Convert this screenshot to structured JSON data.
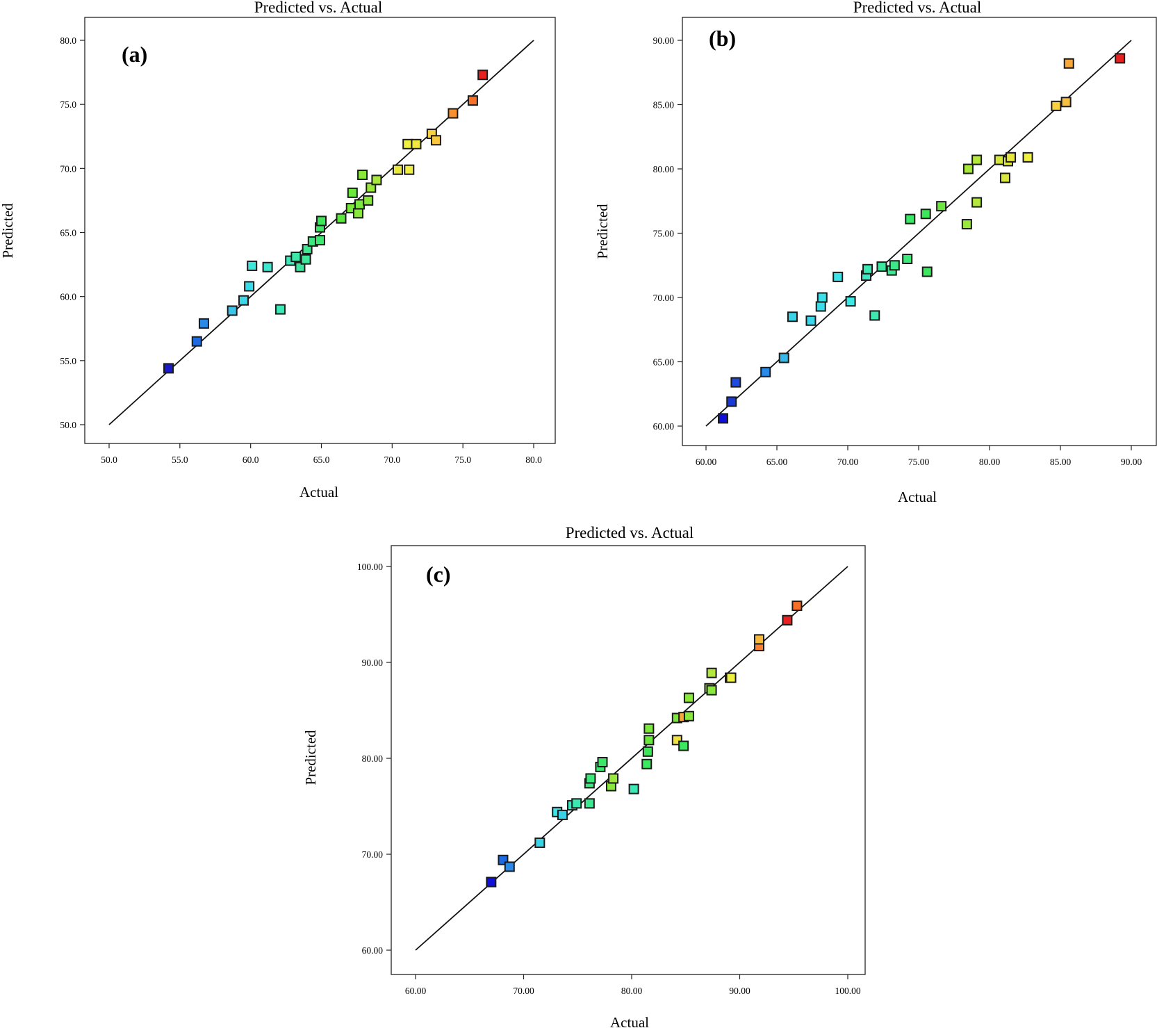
{
  "figure": {
    "description_label": "Predicted vs. Actual parity plots"
  },
  "chart_data": [
    {
      "type": "scatter",
      "panel": "(a)",
      "title": "Predicted vs. Actual",
      "xlabel": "Actual",
      "ylabel": "Predicted",
      "xlim": [
        50.0,
        80.0
      ],
      "ylim": [
        50.0,
        80.0
      ],
      "xticks": [
        "50.0",
        "55.0",
        "60.0",
        "65.0",
        "70.0",
        "75.0",
        "80.0"
      ],
      "yticks": [
        "50.0",
        "55.0",
        "60.0",
        "65.0",
        "70.0",
        "75.0",
        "80.0"
      ],
      "line": {
        "from": [
          50,
          50
        ],
        "to": [
          80,
          80
        ]
      },
      "points": [
        {
          "x": 54.2,
          "y": 54.4,
          "color": "#1a1ac8"
        },
        {
          "x": 56.2,
          "y": 56.5,
          "color": "#1e6ae0"
        },
        {
          "x": 56.7,
          "y": 57.9,
          "color": "#2a8ae8"
        },
        {
          "x": 58.7,
          "y": 58.9,
          "color": "#3cc4e8"
        },
        {
          "x": 59.5,
          "y": 59.7,
          "color": "#3ad8e8"
        },
        {
          "x": 59.9,
          "y": 60.8,
          "color": "#36dce8"
        },
        {
          "x": 60.1,
          "y": 62.4,
          "color": "#3ce8dc"
        },
        {
          "x": 61.2,
          "y": 62.3,
          "color": "#3ce8d0"
        },
        {
          "x": 62.1,
          "y": 59.0,
          "color": "#3ce8b8"
        },
        {
          "x": 62.8,
          "y": 62.8,
          "color": "#3ce8b8"
        },
        {
          "x": 63.2,
          "y": 63.1,
          "color": "#3ce8a8"
        },
        {
          "x": 63.5,
          "y": 62.3,
          "color": "#3ce8a0"
        },
        {
          "x": 63.9,
          "y": 62.9,
          "color": "#3ce89a"
        },
        {
          "x": 64.0,
          "y": 63.7,
          "color": "#3ce890"
        },
        {
          "x": 64.4,
          "y": 64.3,
          "color": "#3ce880"
        },
        {
          "x": 64.9,
          "y": 64.4,
          "color": "#3ce870"
        },
        {
          "x": 64.9,
          "y": 65.4,
          "color": "#3ce864"
        },
        {
          "x": 65.0,
          "y": 65.9,
          "color": "#3ce858"
        },
        {
          "x": 66.4,
          "y": 66.1,
          "color": "#5ae83c"
        },
        {
          "x": 67.1,
          "y": 66.9,
          "color": "#7ae83c"
        },
        {
          "x": 67.2,
          "y": 68.1,
          "color": "#6ae83c"
        },
        {
          "x": 67.6,
          "y": 66.5,
          "color": "#8ae83c"
        },
        {
          "x": 67.7,
          "y": 67.2,
          "color": "#7ae83c"
        },
        {
          "x": 67.9,
          "y": 69.5,
          "color": "#8ae83c"
        },
        {
          "x": 68.3,
          "y": 67.5,
          "color": "#8ae83c"
        },
        {
          "x": 68.5,
          "y": 68.5,
          "color": "#9ae83c"
        },
        {
          "x": 68.9,
          "y": 69.1,
          "color": "#a8e83c"
        },
        {
          "x": 70.4,
          "y": 69.9,
          "color": "#e8e83c"
        },
        {
          "x": 71.1,
          "y": 71.9,
          "color": "#f0f040"
        },
        {
          "x": 71.2,
          "y": 69.9,
          "color": "#f0f040"
        },
        {
          "x": 71.7,
          "y": 71.9,
          "color": "#f0e840"
        },
        {
          "x": 72.8,
          "y": 72.7,
          "color": "#f8d040"
        },
        {
          "x": 73.1,
          "y": 72.2,
          "color": "#f8c840"
        },
        {
          "x": 74.3,
          "y": 74.3,
          "color": "#f89030"
        },
        {
          "x": 75.7,
          "y": 75.3,
          "color": "#f87028"
        },
        {
          "x": 76.4,
          "y": 77.3,
          "color": "#e82020"
        }
      ]
    },
    {
      "type": "scatter",
      "panel": "(b)",
      "title": "Predicted vs. Actual",
      "xlabel": "Actual",
      "ylabel": "Predicted",
      "xlim": [
        60.0,
        90.0
      ],
      "ylim": [
        60.0,
        90.0
      ],
      "xticks": [
        "60.00",
        "65.00",
        "70.00",
        "75.00",
        "80.00",
        "85.00",
        "90.00"
      ],
      "yticks": [
        "60.00",
        "65.00",
        "70.00",
        "75.00",
        "80.00",
        "85.00",
        "90.00"
      ],
      "line": {
        "from": [
          60,
          60
        ],
        "to": [
          90,
          90
        ]
      },
      "points": [
        {
          "x": 61.2,
          "y": 60.6,
          "color": "#1010d8"
        },
        {
          "x": 61.8,
          "y": 61.9,
          "color": "#1a3ad8"
        },
        {
          "x": 62.1,
          "y": 63.4,
          "color": "#1e4ae0"
        },
        {
          "x": 64.2,
          "y": 64.2,
          "color": "#2a8ae8"
        },
        {
          "x": 65.5,
          "y": 65.3,
          "color": "#36b8e8"
        },
        {
          "x": 66.1,
          "y": 68.5,
          "color": "#3ad4e8"
        },
        {
          "x": 67.4,
          "y": 68.2,
          "color": "#3ad8e8"
        },
        {
          "x": 68.1,
          "y": 69.3,
          "color": "#3cdce8"
        },
        {
          "x": 68.2,
          "y": 70.0,
          "color": "#3ce0e8"
        },
        {
          "x": 69.3,
          "y": 71.6,
          "color": "#3ce4e8"
        },
        {
          "x": 70.2,
          "y": 69.7,
          "color": "#3ce8e4"
        },
        {
          "x": 71.3,
          "y": 71.7,
          "color": "#3ce8c8"
        },
        {
          "x": 71.4,
          "y": 72.2,
          "color": "#3ce8b4"
        },
        {
          "x": 71.9,
          "y": 68.6,
          "color": "#3ce8b0"
        },
        {
          "x": 72.4,
          "y": 72.4,
          "color": "#3ce8a0"
        },
        {
          "x": 73.1,
          "y": 72.1,
          "color": "#3ce890"
        },
        {
          "x": 73.3,
          "y": 72.5,
          "color": "#3ce888"
        },
        {
          "x": 74.2,
          "y": 73.0,
          "color": "#3ce878"
        },
        {
          "x": 74.4,
          "y": 76.1,
          "color": "#3ce868"
        },
        {
          "x": 75.5,
          "y": 76.5,
          "color": "#3ce858"
        },
        {
          "x": 75.6,
          "y": 72.0,
          "color": "#3ce860"
        },
        {
          "x": 76.6,
          "y": 77.1,
          "color": "#6ae83c"
        },
        {
          "x": 78.4,
          "y": 75.7,
          "color": "#9ae83c"
        },
        {
          "x": 78.5,
          "y": 80.0,
          "color": "#a8e83c"
        },
        {
          "x": 79.1,
          "y": 77.4,
          "color": "#b4e83c"
        },
        {
          "x": 79.1,
          "y": 80.7,
          "color": "#b4e83c"
        },
        {
          "x": 80.7,
          "y": 80.7,
          "color": "#d4e83c"
        },
        {
          "x": 81.1,
          "y": 79.3,
          "color": "#d8e83c"
        },
        {
          "x": 81.3,
          "y": 80.6,
          "color": "#e0e83c"
        },
        {
          "x": 81.5,
          "y": 80.9,
          "color": "#e8e83c"
        },
        {
          "x": 82.7,
          "y": 80.9,
          "color": "#f0f040"
        },
        {
          "x": 84.7,
          "y": 84.9,
          "color": "#f8d040"
        },
        {
          "x": 85.4,
          "y": 85.2,
          "color": "#f8c040"
        },
        {
          "x": 85.6,
          "y": 88.2,
          "color": "#f8a838"
        },
        {
          "x": 89.2,
          "y": 88.6,
          "color": "#e82020"
        }
      ]
    },
    {
      "type": "scatter",
      "panel": "(c)",
      "title": "Predicted vs. Actual",
      "xlabel": "Actual",
      "ylabel": "Predicted",
      "xlim": [
        60.0,
        100.0
      ],
      "ylim": [
        60.0,
        100.0
      ],
      "xticks": [
        "60.00",
        "70.00",
        "80.00",
        "90.00",
        "100.00"
      ],
      "yticks": [
        "60.00",
        "70.00",
        "80.00",
        "90.00",
        "100.00"
      ],
      "line": {
        "from": [
          60,
          60
        ],
        "to": [
          100,
          100
        ]
      },
      "points": [
        {
          "x": 67.0,
          "y": 67.1,
          "color": "#1010d8"
        },
        {
          "x": 68.1,
          "y": 69.4,
          "color": "#1e6ae0"
        },
        {
          "x": 68.7,
          "y": 68.7,
          "color": "#2a8ae8"
        },
        {
          "x": 71.5,
          "y": 71.2,
          "color": "#3ad4e8"
        },
        {
          "x": 73.1,
          "y": 74.4,
          "color": "#3ce4e8"
        },
        {
          "x": 73.6,
          "y": 74.1,
          "color": "#3ad0e8"
        },
        {
          "x": 74.5,
          "y": 75.1,
          "color": "#3ce8c0"
        },
        {
          "x": 74.9,
          "y": 75.3,
          "color": "#3ce8b0"
        },
        {
          "x": 76.1,
          "y": 75.3,
          "color": "#3ce890"
        },
        {
          "x": 76.1,
          "y": 77.4,
          "color": "#3ce880"
        },
        {
          "x": 76.2,
          "y": 77.9,
          "color": "#3ce878"
        },
        {
          "x": 77.1,
          "y": 79.1,
          "color": "#3ce870"
        },
        {
          "x": 77.3,
          "y": 79.6,
          "color": "#3ce868"
        },
        {
          "x": 78.1,
          "y": 77.1,
          "color": "#8ae83c"
        },
        {
          "x": 78.3,
          "y": 77.9,
          "color": "#9ae83c"
        },
        {
          "x": 80.2,
          "y": 76.8,
          "color": "#3ce8b8"
        },
        {
          "x": 81.4,
          "y": 79.4,
          "color": "#3ce860"
        },
        {
          "x": 81.5,
          "y": 80.7,
          "color": "#3ce858"
        },
        {
          "x": 81.6,
          "y": 81.9,
          "color": "#6ae83c"
        },
        {
          "x": 81.6,
          "y": 83.1,
          "color": "#7ae83c"
        },
        {
          "x": 84.2,
          "y": 84.2,
          "color": "#7ae83c"
        },
        {
          "x": 84.2,
          "y": 81.9,
          "color": "#f0e040"
        },
        {
          "x": 84.8,
          "y": 81.3,
          "color": "#3ce860"
        },
        {
          "x": 84.8,
          "y": 84.3,
          "color": "#f8a838"
        },
        {
          "x": 85.3,
          "y": 84.4,
          "color": "#8ae83c"
        },
        {
          "x": 85.3,
          "y": 86.3,
          "color": "#8ae83c"
        },
        {
          "x": 87.2,
          "y": 87.3,
          "color": "#a8e83c"
        },
        {
          "x": 87.4,
          "y": 87.1,
          "color": "#8ae83c"
        },
        {
          "x": 87.4,
          "y": 88.9,
          "color": "#b4e83c"
        },
        {
          "x": 89.1,
          "y": 88.4,
          "color": "#d4e83c"
        },
        {
          "x": 89.2,
          "y": 88.4,
          "color": "#f0f040"
        },
        {
          "x": 91.8,
          "y": 91.7,
          "color": "#f88030"
        },
        {
          "x": 91.8,
          "y": 92.4,
          "color": "#f8b838"
        },
        {
          "x": 94.4,
          "y": 94.4,
          "color": "#e82020"
        },
        {
          "x": 95.3,
          "y": 95.9,
          "color": "#f87028"
        }
      ]
    }
  ]
}
